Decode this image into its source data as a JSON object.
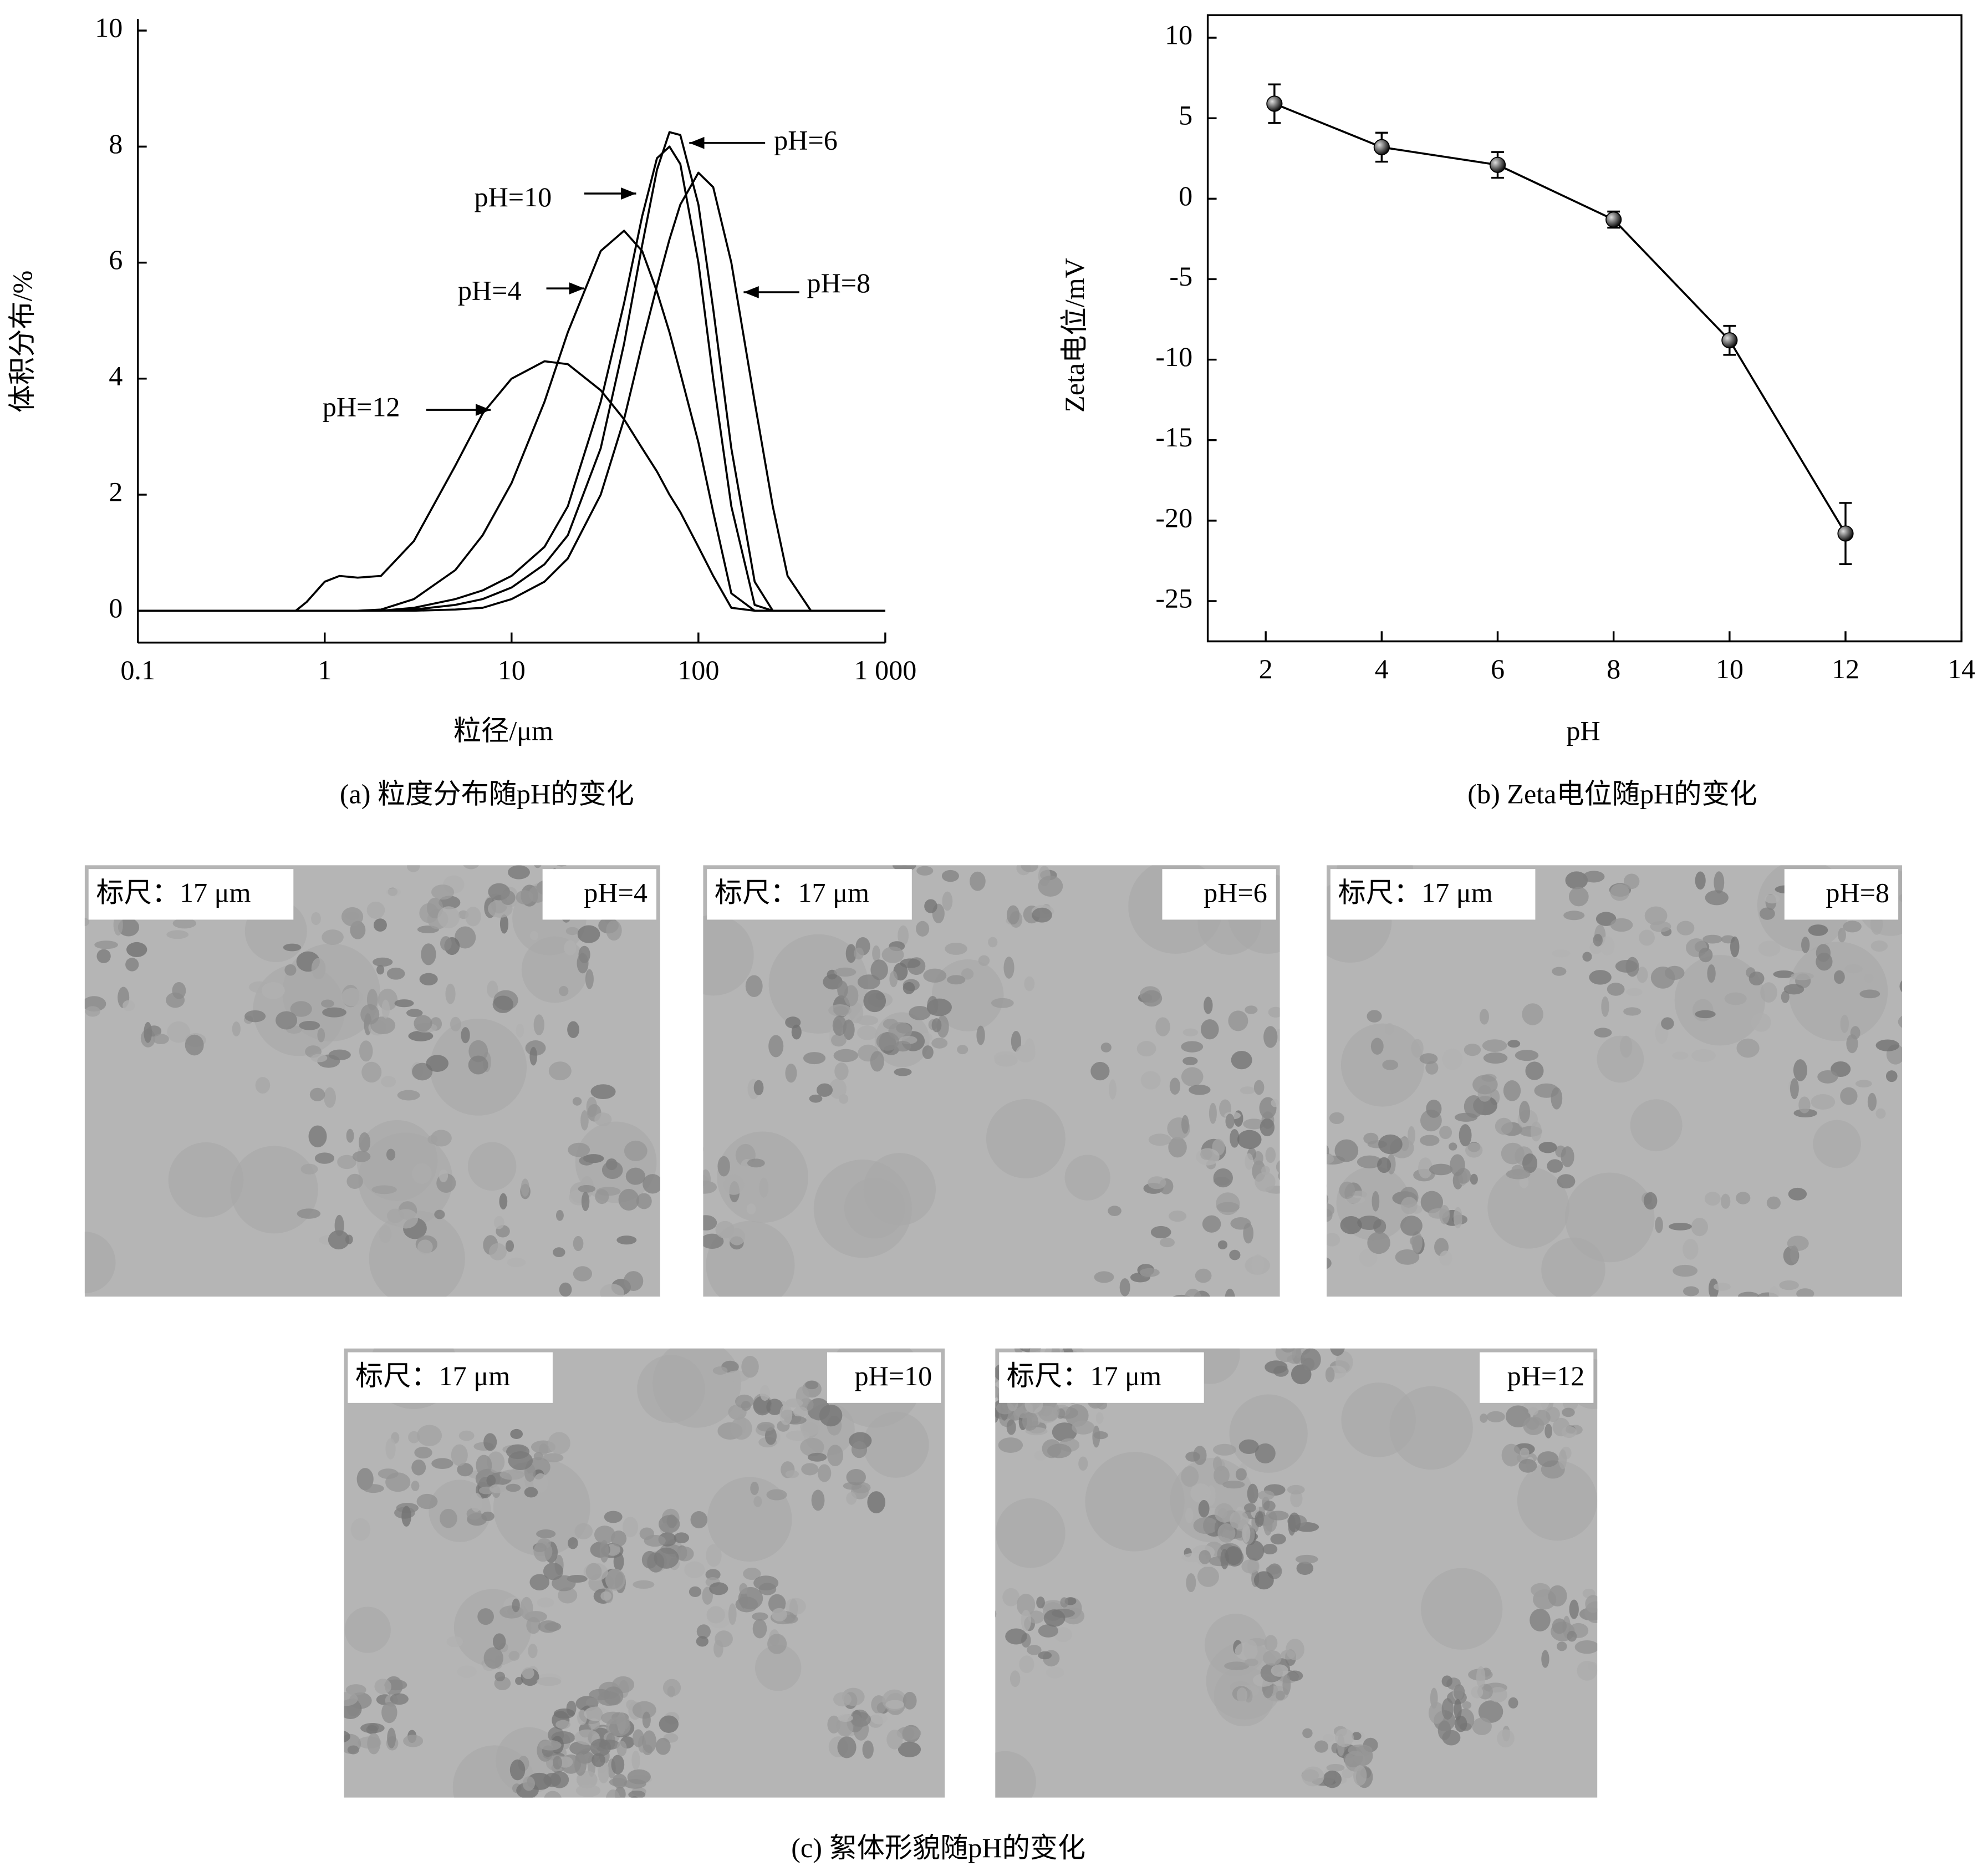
{
  "chart_data": [
    {
      "type": "line",
      "xscale": "log",
      "ylabel": "体积分布/%",
      "xlabel": "粒径/μm",
      "caption": "(a) 粒度分布随pH的变化",
      "xlim": [
        0.1,
        1000
      ],
      "ylim": [
        -0.55,
        10.2
      ],
      "xticks": [
        0.1,
        1,
        10,
        100,
        {
          "value": 1000,
          "label": "1 000"
        }
      ],
      "yticks": [
        0,
        2,
        4,
        6,
        8,
        10
      ],
      "x": [
        0.1,
        0.7,
        0.8,
        1,
        1.2,
        1.5,
        2,
        3,
        5,
        7,
        10,
        15,
        20,
        30,
        40,
        50,
        60,
        70,
        80,
        100,
        120,
        150,
        200,
        250,
        300,
        400,
        1000
      ],
      "series": [
        {
          "name": "pH=4",
          "color": "#000000",
          "values": [
            0,
            0,
            0,
            0,
            0,
            0,
            0.02,
            0.2,
            0.7,
            1.3,
            2.2,
            3.6,
            4.8,
            6.2,
            6.55,
            6.2,
            5.5,
            4.8,
            4.1,
            2.9,
            1.7,
            0.3,
            0,
            0,
            0,
            0,
            0
          ]
        },
        {
          "name": "pH=6",
          "color": "#000000",
          "values": [
            0,
            0,
            0,
            0,
            0,
            0,
            0,
            0.02,
            0.1,
            0.2,
            0.4,
            0.8,
            1.3,
            2.8,
            4.6,
            6.3,
            7.6,
            8.25,
            8.2,
            7.0,
            5.2,
            2.8,
            0.5,
            0,
            0,
            0,
            0
          ]
        },
        {
          "name": "pH=8",
          "color": "#000000",
          "values": [
            0,
            0,
            0,
            0,
            0,
            0,
            0,
            0,
            0.02,
            0.05,
            0.2,
            0.5,
            0.9,
            2.0,
            3.3,
            4.6,
            5.6,
            6.4,
            7.0,
            7.55,
            7.3,
            6.0,
            3.6,
            1.8,
            0.6,
            0,
            0
          ]
        },
        {
          "name": "pH=10",
          "color": "#000000",
          "values": [
            0,
            0,
            0,
            0,
            0,
            0,
            0,
            0.05,
            0.2,
            0.35,
            0.6,
            1.1,
            1.8,
            3.6,
            5.3,
            6.8,
            7.8,
            8.0,
            7.7,
            6.0,
            4.0,
            1.8,
            0.1,
            0,
            0,
            0,
            0
          ]
        },
        {
          "name": "pH=12",
          "color": "#000000",
          "values": [
            0,
            0,
            0.15,
            0.5,
            0.6,
            0.57,
            0.6,
            1.2,
            2.5,
            3.4,
            4.0,
            4.3,
            4.25,
            3.8,
            3.3,
            2.8,
            2.4,
            2.0,
            1.7,
            1.1,
            0.6,
            0.05,
            0,
            0,
            0,
            0,
            0
          ]
        }
      ]
    },
    {
      "type": "line",
      "markers": true,
      "ylabel": "Zeta电位/mV",
      "xlabel": "pH",
      "caption": "(b) Zeta电位随pH的变化",
      "xlim": [
        1,
        14
      ],
      "ylim": [
        -27.5,
        11.4
      ],
      "xticks": [
        2,
        4,
        6,
        8,
        10,
        12,
        14
      ],
      "yticks": [
        10,
        5,
        0,
        -5,
        -10,
        -15,
        -20,
        -25
      ],
      "x": [
        2.15,
        4,
        6,
        8,
        10,
        12
      ],
      "series": [
        {
          "color": "#000000",
          "values": [
            5.9,
            3.2,
            2.1,
            -1.3,
            -8.8,
            -20.8
          ],
          "errors": [
            1.2,
            0.9,
            0.8,
            0.5,
            0.9,
            1.9
          ]
        }
      ]
    }
  ],
  "micrographs": {
    "caption": "(c) 絮体形貌随pH的变化",
    "panels": [
      {
        "scale": "标尺：17 μm",
        "label": "pH=4"
      },
      {
        "scale": "标尺：17 μm",
        "label": "pH=6"
      },
      {
        "scale": "标尺：17 μm",
        "label": "pH=8"
      },
      {
        "scale": "标尺：17 μm",
        "label": "pH=10"
      },
      {
        "scale": "标尺：17 μm",
        "label": "pH=12"
      }
    ]
  }
}
